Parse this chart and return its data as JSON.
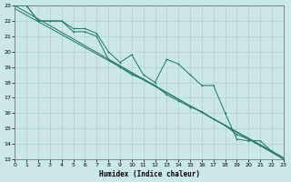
{
  "xlabel": "Humidex (Indice chaleur)",
  "bg_color": "#cbe8e8",
  "grid_color": "#b0d0d0",
  "line_color": "#2a7a6a",
  "xlim": [
    0,
    23
  ],
  "ylim": [
    13,
    23
  ],
  "xticks": [
    0,
    1,
    2,
    3,
    4,
    5,
    6,
    7,
    8,
    9,
    10,
    11,
    12,
    13,
    14,
    15,
    16,
    17,
    18,
    19,
    20,
    21,
    22,
    23
  ],
  "yticks": [
    13,
    14,
    15,
    16,
    17,
    18,
    19,
    20,
    21,
    22,
    23
  ],
  "straight1": {
    "x": [
      0,
      23
    ],
    "y": [
      23.0,
      13.0
    ]
  },
  "straight2": {
    "x": [
      0,
      23
    ],
    "y": [
      22.8,
      13.1
    ]
  },
  "line_smooth": {
    "x": [
      0,
      1,
      2,
      3,
      4,
      5,
      6,
      7,
      8,
      9,
      10,
      11,
      12,
      13,
      14,
      15,
      16,
      17,
      18,
      19,
      20,
      21,
      22,
      23
    ],
    "y": [
      23,
      23,
      22,
      22.0,
      22.0,
      21.5,
      21.5,
      21.2,
      20.0,
      19.3,
      19.8,
      18.5,
      18.0,
      19.5,
      19.2,
      18.5,
      17.8,
      17.8,
      16.0,
      14.3,
      14.2,
      14.2,
      13.5,
      13.0
    ]
  },
  "line_lower": {
    "x": [
      0,
      1,
      2,
      3,
      4,
      5,
      6,
      7,
      8,
      9,
      10,
      11,
      12,
      13,
      14,
      15,
      16,
      17,
      18,
      19,
      20,
      21,
      22,
      23
    ],
    "y": [
      23,
      23,
      22,
      22.0,
      22.0,
      21.3,
      21.3,
      21.0,
      19.5,
      19.0,
      18.5,
      18.2,
      17.8,
      17.2,
      16.8,
      16.4,
      16.1,
      15.6,
      15.2,
      14.6,
      14.3,
      13.9,
      13.5,
      13.0
    ]
  },
  "marker_size": 2.0,
  "lw": 0.75,
  "xlabel_fontsize": 5.5,
  "tick_fontsize": 4.5
}
